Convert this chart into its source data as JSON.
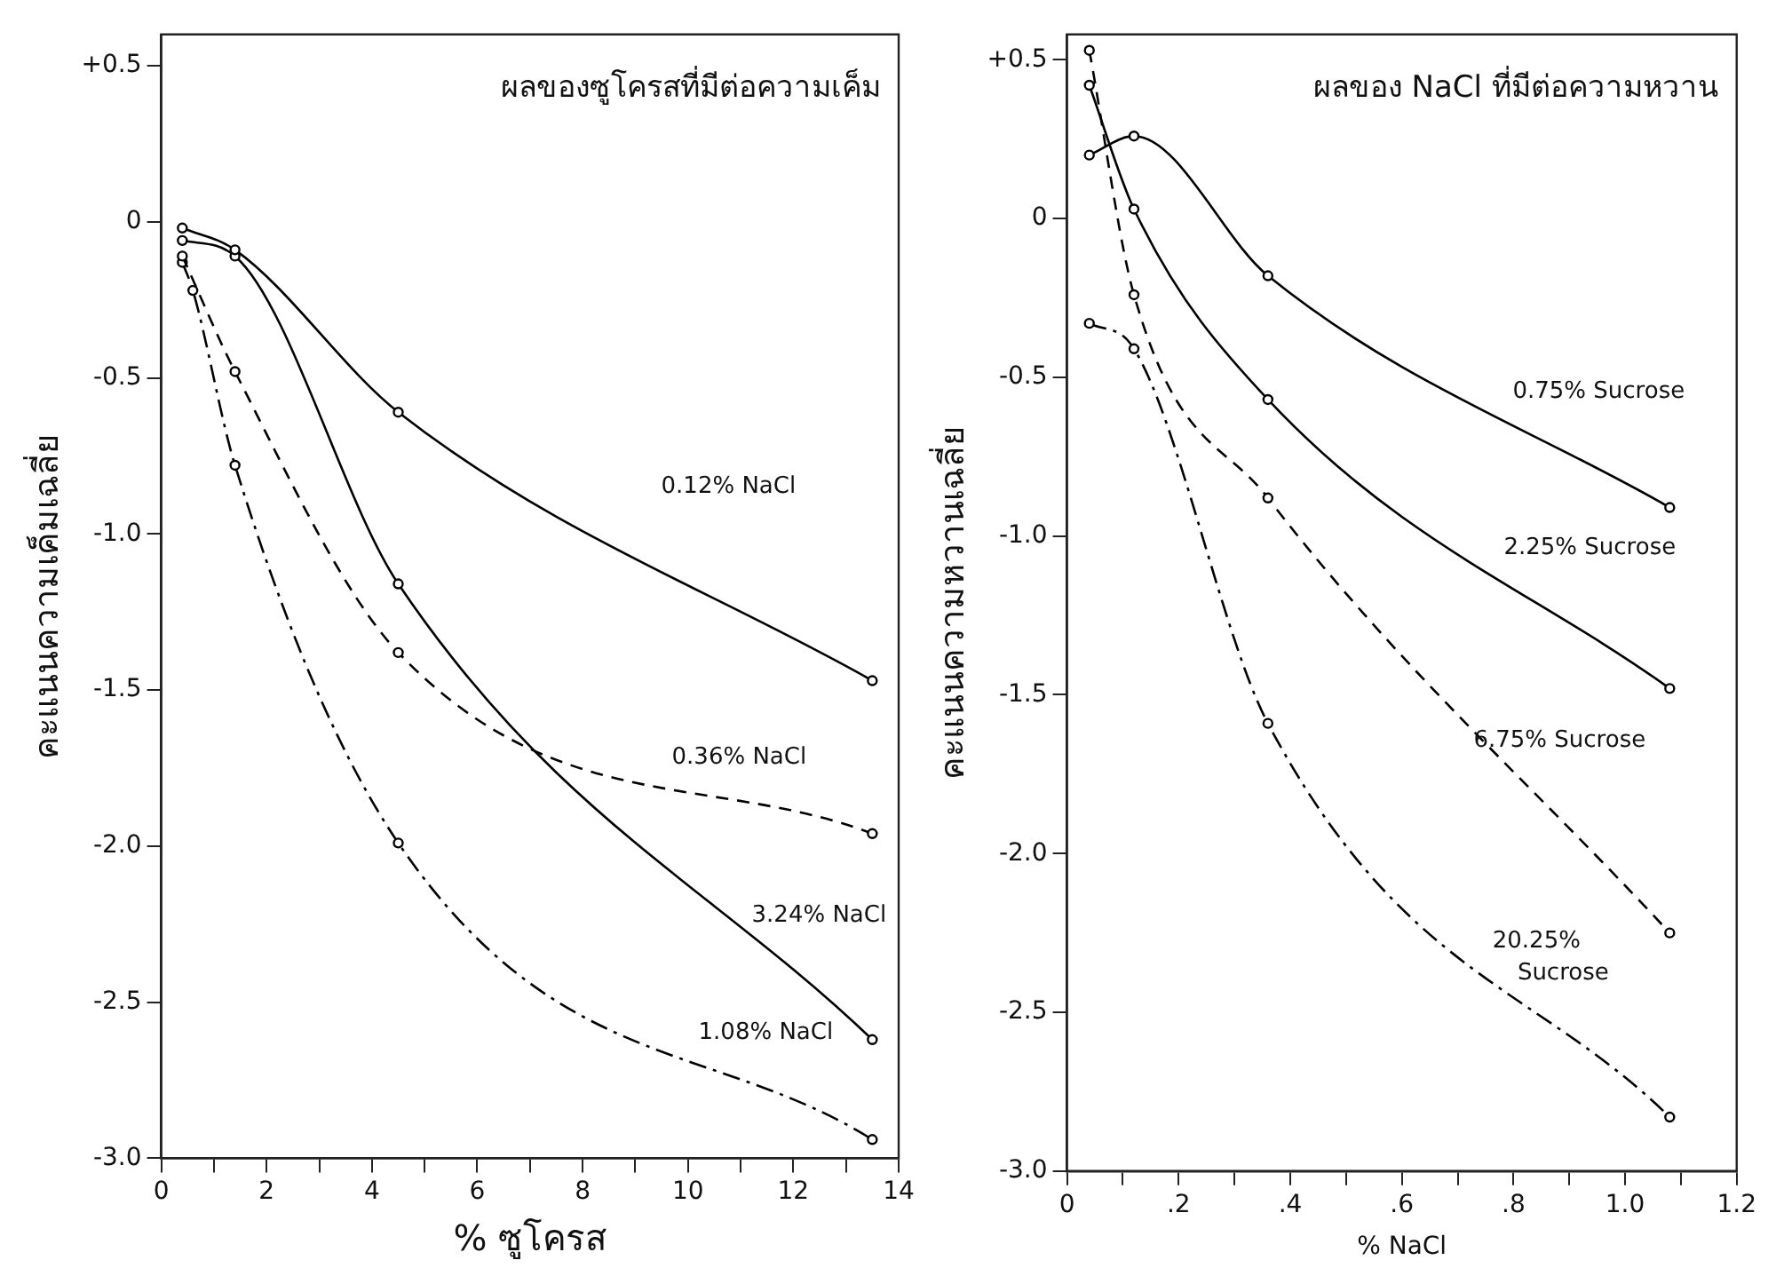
{
  "chart_data": [
    {
      "type": "line",
      "title": "ผลของซูโครสที่มีต่อความเค็ม",
      "xlabel": "% ซูโครส",
      "ylabel": "คะแนนความเค็มเฉลี่ย",
      "x": [
        0.4,
        1.4,
        4.5,
        13.5
      ],
      "xlim": [
        0,
        14
      ],
      "xticks": [
        0,
        {
          "value": 1,
          "label": null
        },
        2,
        {
          "value": 3,
          "label": null
        },
        4,
        {
          "value": 5,
          "label": null
        },
        6,
        {
          "value": 7,
          "label": null
        },
        8,
        {
          "value": 9,
          "label": null
        },
        10,
        {
          "value": 11,
          "label": null
        },
        12,
        {
          "value": 13,
          "label": null
        },
        14
      ],
      "ylim": [
        -3.0,
        0.6
      ],
      "yticks": [
        {
          "value": 0.5,
          "label": "+0.5"
        },
        0,
        -0.5,
        {
          "value": -1,
          "label": "-1.0"
        },
        -1.5,
        {
          "value": -2,
          "label": "-2.0"
        },
        -2.5,
        {
          "value": -3,
          "label": "-3.0"
        }
      ],
      "grid": false,
      "legend": false,
      "marker": "circle",
      "series": [
        {
          "name": "0.12% NaCl",
          "color": "#000000",
          "line_style": "solid",
          "values": [
            -0.02,
            -0.09,
            -0.61,
            -1.47
          ]
        },
        {
          "name": "0.36% NaCl",
          "color": "#000000",
          "line_style": "dashed",
          "values": [
            -0.11,
            -0.48,
            -1.38,
            -1.96
          ]
        },
        {
          "name": "3.24% NaCl",
          "color": "#000000",
          "line_style": "solid",
          "values": [
            -0.06,
            -0.11,
            -1.16,
            -2.62
          ]
        },
        {
          "name": "1.08% NaCl",
          "color": "#000000",
          "line_style": "dashdot",
          "x": [
            0.4,
            0.6,
            1.4,
            4.5,
            13.5
          ],
          "values": [
            -0.13,
            -0.22,
            -0.78,
            -1.99,
            -2.94
          ]
        }
      ]
    },
    {
      "type": "line",
      "title": "ผลของ NaCl ที่มีต่อความหวาน",
      "xlabel": "% NaCl",
      "ylabel": "คะแนนความหวานเฉลี่ย",
      "x": [
        0.04,
        0.12,
        0.36,
        1.08
      ],
      "xlim": [
        0,
        1.2
      ],
      "xticks": [
        0,
        {
          "value": 0.1,
          "label": null
        },
        {
          "value": 0.2,
          "label": ".2"
        },
        {
          "value": 0.3,
          "label": null
        },
        {
          "value": 0.4,
          "label": ".4"
        },
        {
          "value": 0.5,
          "label": null
        },
        {
          "value": 0.6,
          "label": ".6"
        },
        {
          "value": 0.7,
          "label": null
        },
        {
          "value": 0.8,
          "label": ".8"
        },
        {
          "value": 0.9,
          "label": null
        },
        {
          "value": 1.0,
          "label": "1.0"
        },
        {
          "value": 1.1,
          "label": null
        },
        {
          "value": 1.2,
          "label": "1.2"
        }
      ],
      "ylim": [
        -3.0,
        0.58
      ],
      "yticks": [
        {
          "value": 0.5,
          "label": "+0.5"
        },
        0,
        -0.5,
        {
          "value": -1,
          "label": "-1.0"
        },
        -1.5,
        {
          "value": -2,
          "label": "-2.0"
        },
        -2.5,
        {
          "value": -3,
          "label": "-3.0"
        }
      ],
      "grid": false,
      "legend": false,
      "marker": "circle",
      "series": [
        {
          "name": "0.75% Sucrose",
          "color": "#000000",
          "line_style": "solid",
          "values": [
            0.2,
            0.26,
            -0.18,
            -0.91
          ]
        },
        {
          "name": "2.25% Sucrose",
          "color": "#000000",
          "line_style": "solid",
          "values": [
            0.42,
            0.03,
            -0.57,
            -1.48
          ]
        },
        {
          "name": "6.75% Sucrose",
          "color": "#000000",
          "line_style": "dashed",
          "values": [
            0.53,
            -0.24,
            -0.88,
            -2.25
          ]
        },
        {
          "name": "20.25%\nSucrose",
          "color": "#000000",
          "line_style": "dashdot",
          "values": [
            -0.33,
            -0.41,
            -1.59,
            -2.83
          ]
        }
      ]
    }
  ]
}
